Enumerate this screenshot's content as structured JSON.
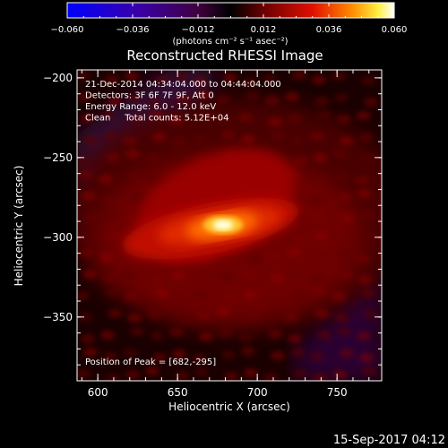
{
  "chart_data": {
    "type": "heatmap",
    "title": "Reconstructed RHESSI Image",
    "colorbar": {
      "colormap": "rhessi-heat (blue-purple-red-yellow-white)",
      "min": -0.06,
      "max": 0.06,
      "tick_labels": [
        "−0.060",
        "−0.036",
        "−0.012",
        "0.012",
        "0.036",
        "0.060"
      ],
      "unit_label": "(photons cm⁻² s⁻¹ asec⁻²)"
    },
    "xlabel": "Heliocentric X (arcsec)",
    "ylabel": "Heliocentric Y (arcsec)",
    "xlim": [
      587,
      778
    ],
    "ylim": [
      -390,
      -195
    ],
    "x_ticks": [
      600,
      650,
      700,
      750
    ],
    "x_tick_labels": [
      "600",
      "650",
      "700",
      "750"
    ],
    "y_ticks": [
      -200,
      -250,
      -300,
      -350
    ],
    "y_tick_labels": [
      "−200",
      "−250",
      "−300",
      "−350"
    ],
    "annotations": [
      "21-Dec-2014 04:34:04.000 to 04:44:04.000",
      "Detectors: 3F 6F 7F 9F, Att 0",
      "Energy Range: 6.0 - 12.0 keV",
      "Clean     Total counts: 5.12E+04"
    ],
    "peak_label": "Position of Peak = [682,-295]",
    "peak_position": [
      682,
      -295
    ],
    "grid": false
  },
  "footer_timestamp": "15-Sep-2017 04:12"
}
